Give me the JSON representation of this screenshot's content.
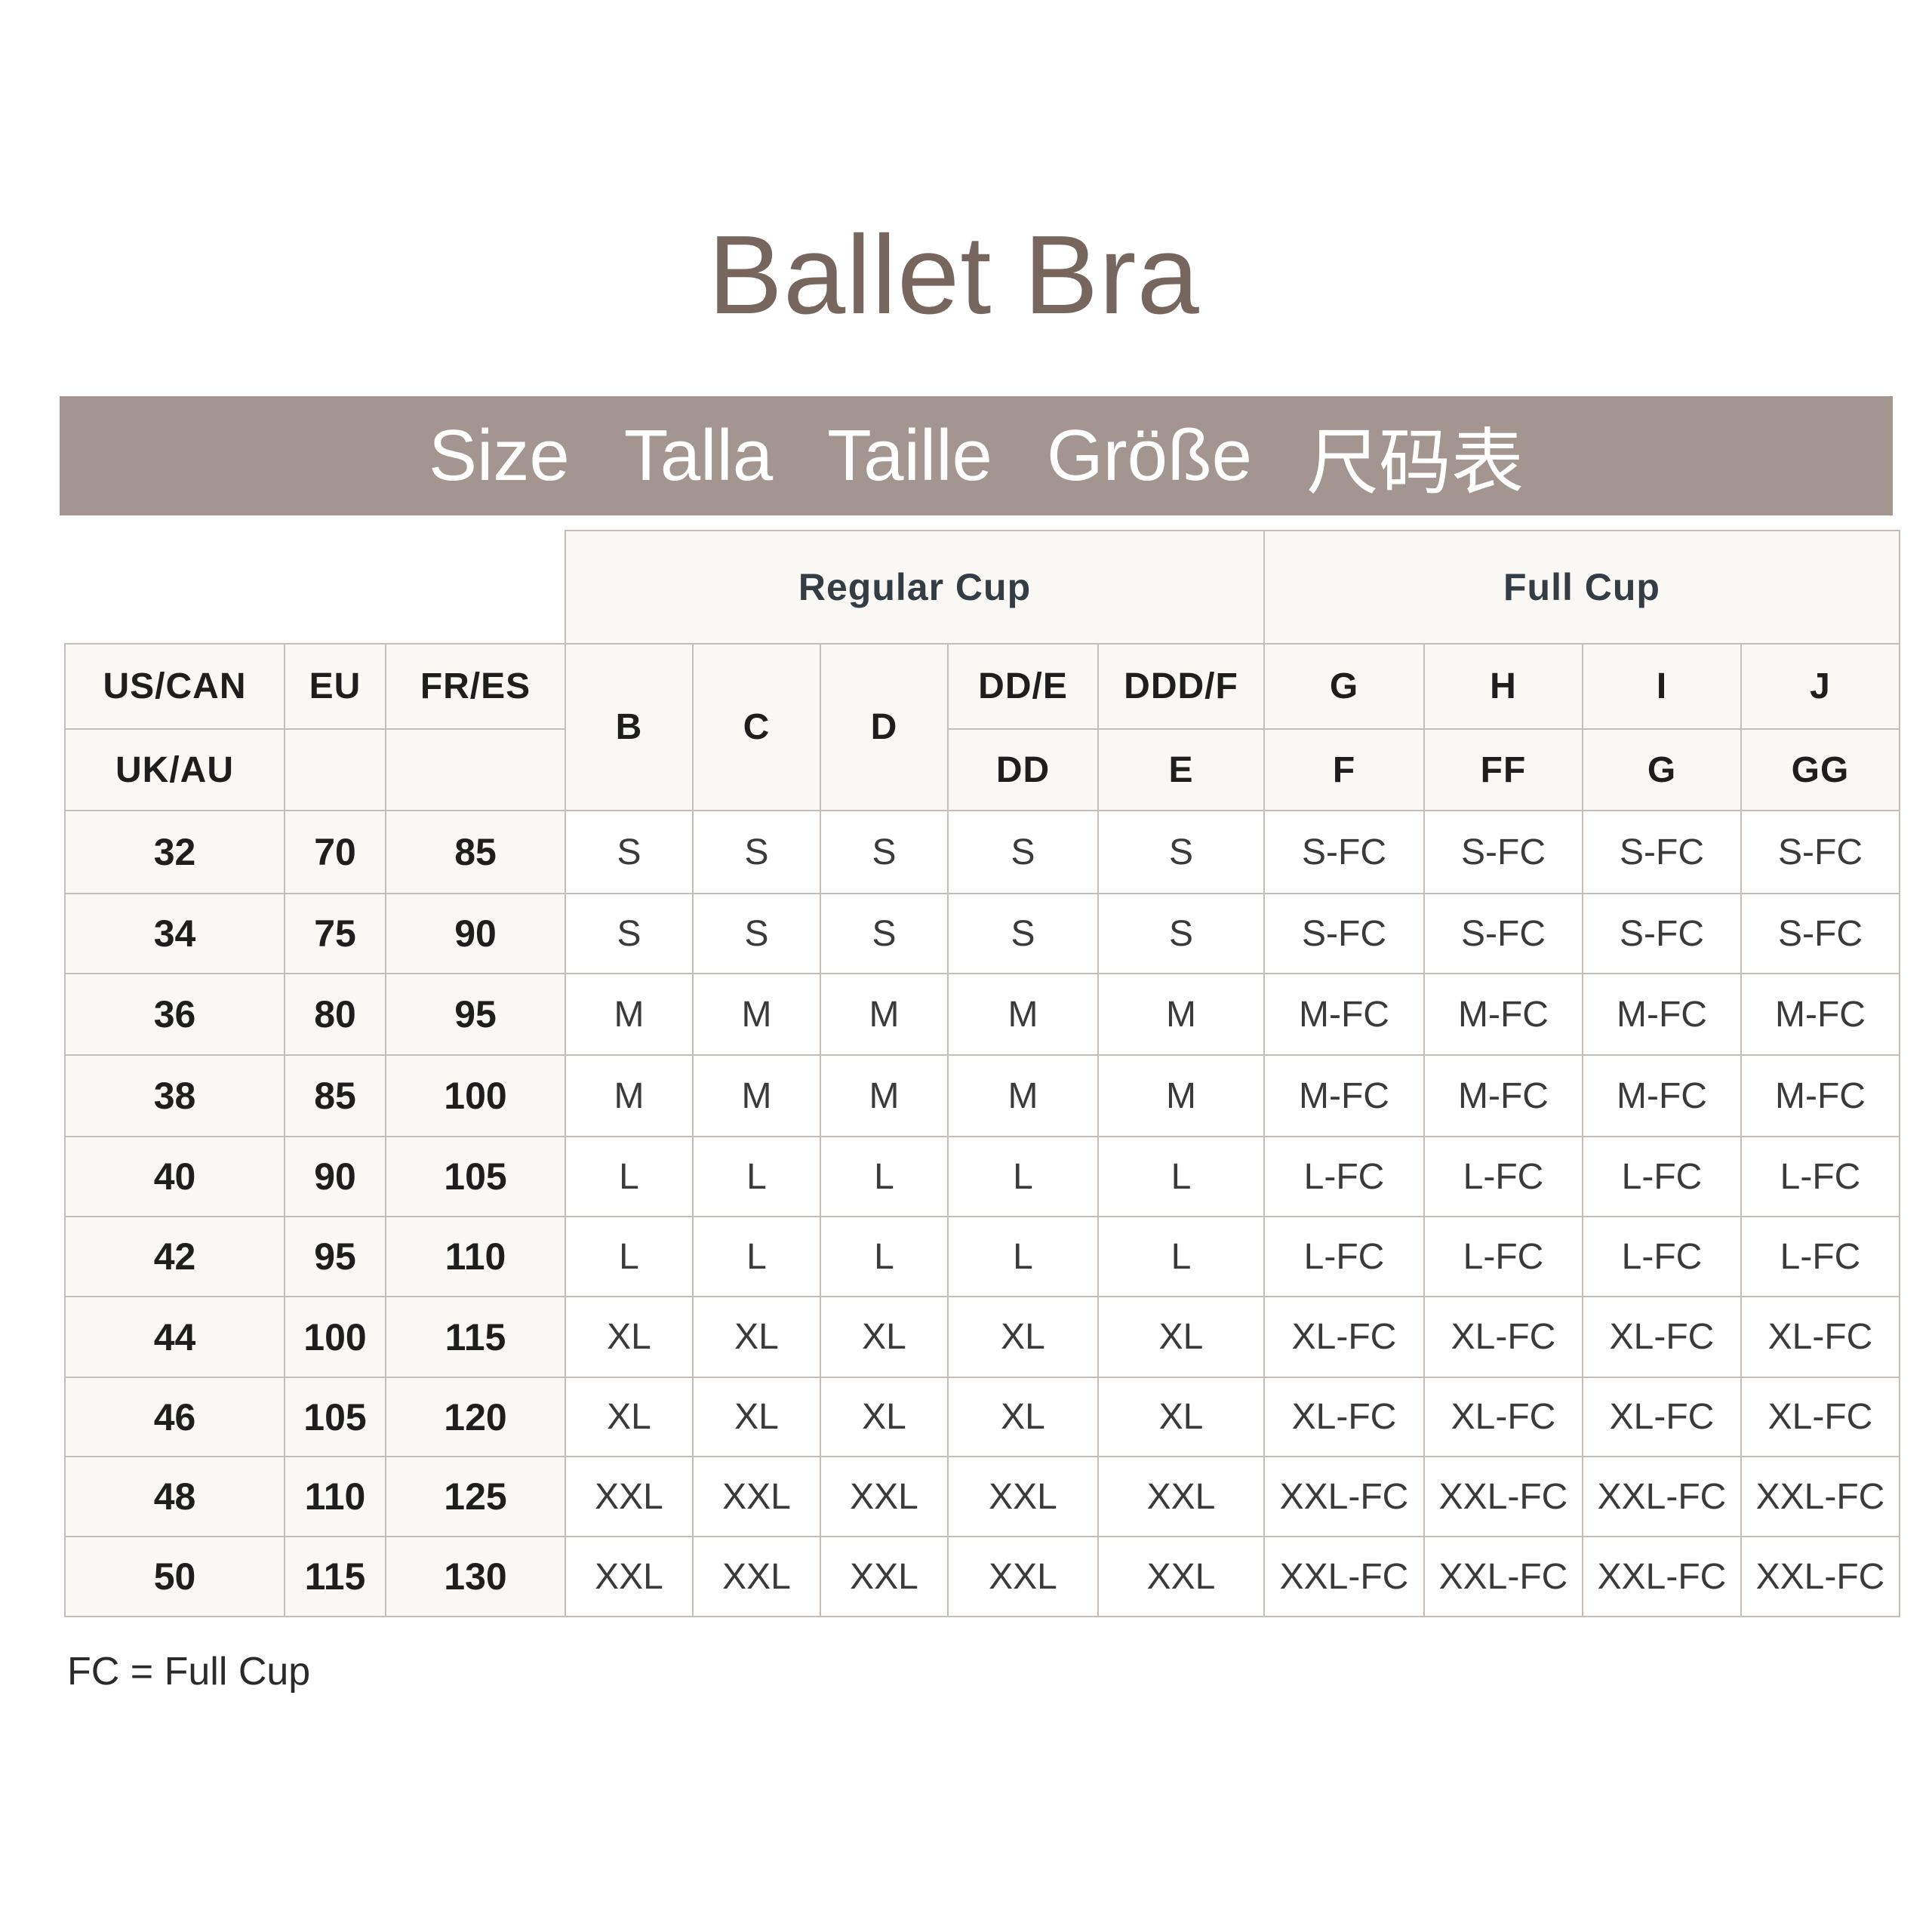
{
  "title": "Ballet Bra",
  "band_labels": [
    "Size",
    "Talla",
    "Taille",
    "Größe",
    "尺码表"
  ],
  "groups": [
    "Regular Cup",
    "Full Cup"
  ],
  "left_headers": {
    "row1": [
      "US/CAN",
      "EU",
      "FR/ES"
    ],
    "row2": [
      "UK/AU",
      "",
      ""
    ]
  },
  "cup_headers_row1": [
    "B",
    "C",
    "D",
    "DD/E",
    "DDD/F",
    "G",
    "H",
    "I",
    "J"
  ],
  "cup_headers_row2": [
    "DD",
    "E",
    "F",
    "FF",
    "G",
    "GG"
  ],
  "rows": [
    {
      "band": [
        "32",
        "70",
        "85"
      ],
      "sizes": [
        "S",
        "S",
        "S",
        "S",
        "S",
        "S-FC",
        "S-FC",
        "S-FC",
        "S-FC"
      ]
    },
    {
      "band": [
        "34",
        "75",
        "90"
      ],
      "sizes": [
        "S",
        "S",
        "S",
        "S",
        "S",
        "S-FC",
        "S-FC",
        "S-FC",
        "S-FC"
      ]
    },
    {
      "band": [
        "36",
        "80",
        "95"
      ],
      "sizes": [
        "M",
        "M",
        "M",
        "M",
        "M",
        "M-FC",
        "M-FC",
        "M-FC",
        "M-FC"
      ]
    },
    {
      "band": [
        "38",
        "85",
        "100"
      ],
      "sizes": [
        "M",
        "M",
        "M",
        "M",
        "M",
        "M-FC",
        "M-FC",
        "M-FC",
        "M-FC"
      ]
    },
    {
      "band": [
        "40",
        "90",
        "105"
      ],
      "sizes": [
        "L",
        "L",
        "L",
        "L",
        "L",
        "L-FC",
        "L-FC",
        "L-FC",
        "L-FC"
      ]
    },
    {
      "band": [
        "42",
        "95",
        "110"
      ],
      "sizes": [
        "L",
        "L",
        "L",
        "L",
        "L",
        "L-FC",
        "L-FC",
        "L-FC",
        "L-FC"
      ]
    },
    {
      "band": [
        "44",
        "100",
        "115"
      ],
      "sizes": [
        "XL",
        "XL",
        "XL",
        "XL",
        "XL",
        "XL-FC",
        "XL-FC",
        "XL-FC",
        "XL-FC"
      ]
    },
    {
      "band": [
        "46",
        "105",
        "120"
      ],
      "sizes": [
        "XL",
        "XL",
        "XL",
        "XL",
        "XL",
        "XL-FC",
        "XL-FC",
        "XL-FC",
        "XL-FC"
      ]
    },
    {
      "band": [
        "48",
        "110",
        "125"
      ],
      "sizes": [
        "XXL",
        "XXL",
        "XXL",
        "XXL",
        "XXL",
        "XXL-FC",
        "XXL-FC",
        "XXL-FC",
        "XXL-FC"
      ]
    },
    {
      "band": [
        "50",
        "115",
        "130"
      ],
      "sizes": [
        "XXL",
        "XXL",
        "XXL",
        "XXL",
        "XXL",
        "XXL-FC",
        "XXL-FC",
        "XXL-FC",
        "XXL-FC"
      ]
    }
  ],
  "footnote": "FC = Full Cup",
  "colors": {
    "band": "#a39590",
    "title": "#76665e",
    "header_bg": "#faf8f5",
    "grid": "#c4bdb8"
  }
}
